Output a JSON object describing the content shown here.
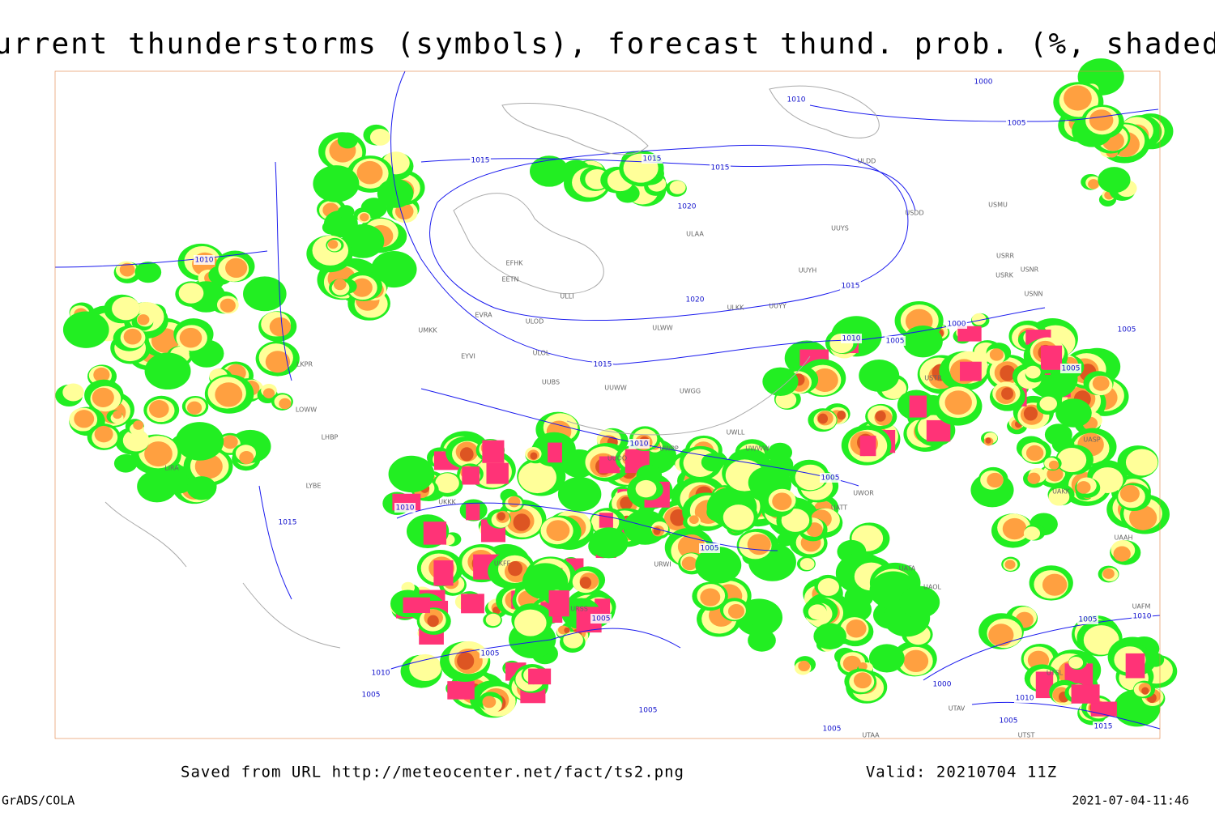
{
  "title": "Current thunderstorms (symbols), forecast thund. prob. (%, shaded)",
  "footer": {
    "source": "Saved from URL http://meteocenter.net/fact/ts2.png",
    "valid": "Valid: 20210704 11Z",
    "software": "GrADS/COLA",
    "timestamp": "2021-07-04-11:46"
  },
  "map": {
    "stations": [
      "EFHK",
      "EETN",
      "ULLI",
      "EVRA",
      "ULOD",
      "ULOL",
      "EYVI",
      "UMKK",
      "UUWW",
      "UUBS",
      "ULAA",
      "UUYS",
      "UUYH",
      "ULKK",
      "UUYY",
      "ULWW",
      "UWGG",
      "UWPP",
      "UWWW",
      "UWLL",
      "ULDD",
      "USDD",
      "USMU",
      "USRR",
      "USRK",
      "USNR",
      "USNN",
      "USTR",
      "UUOO",
      "UKKK",
      "UKFF",
      "URSS",
      "URWI",
      "UATT",
      "UWOR",
      "UAKK",
      "UASP",
      "UATA",
      "UAOL",
      "UTAA",
      "UTAV",
      "UTSL",
      "UTST",
      "UAAH",
      "UAFM",
      "LKPR",
      "LOWW",
      "LHBP",
      "LIRA",
      "LYBE"
    ],
    "isobar_labels": [
      1000,
      1010,
      1005,
      1015,
      1015,
      1015,
      1020,
      1020,
      1015,
      1010,
      1015,
      1010,
      1005,
      1000,
      1005,
      1005,
      1010,
      1005,
      1010,
      1015,
      1005,
      1005,
      1005,
      1010,
      1005,
      1010,
      1005,
      1000,
      1010,
      1005,
      1005,
      1005,
      1015
    ]
  }
}
